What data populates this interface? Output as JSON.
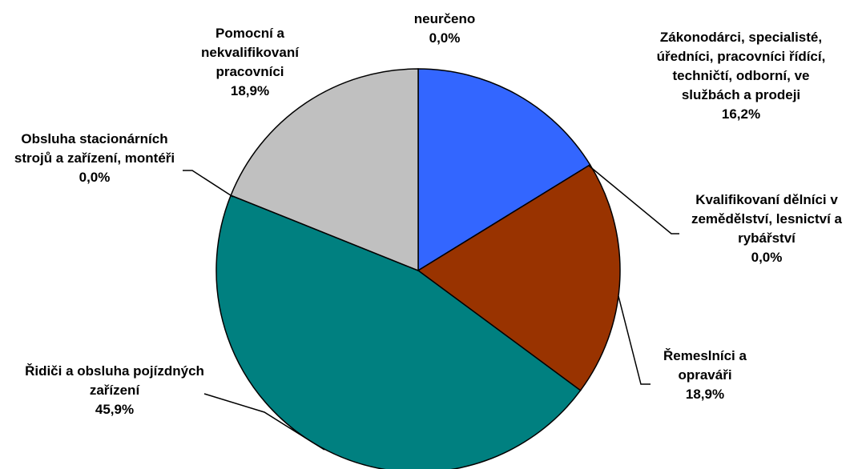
{
  "chart_data": {
    "type": "pie",
    "categories": [
      "neurčeno",
      "Zákonodárci, specialisté, úředníci, pracovníci řídící, techničtí, odborní, ve službách a prodeji",
      "Kvalifikovaní dělníci v zemědělství, lesnictví a rybářství",
      "Řemeslníci a opraváři",
      "Řidiči a obsluha pojízdných zařízení",
      "Obsluha stacionárních strojů a zařízení, montéři",
      "Pomocní a nekvalifikovaní pracovníci"
    ],
    "values": [
      0,
      16.2,
      0,
      18.9,
      45.9,
      0,
      18.9
    ],
    "value_labels": [
      "0,0%",
      "16,2%",
      "0,0%",
      "18,9%",
      "45,9%",
      "0,0%",
      "18,9%"
    ],
    "colors": [
      "#ffffff",
      "#3366ff",
      "#ffff99",
      "#993300",
      "#008080",
      "#ff9900",
      "#c0c0c0"
    ]
  }
}
